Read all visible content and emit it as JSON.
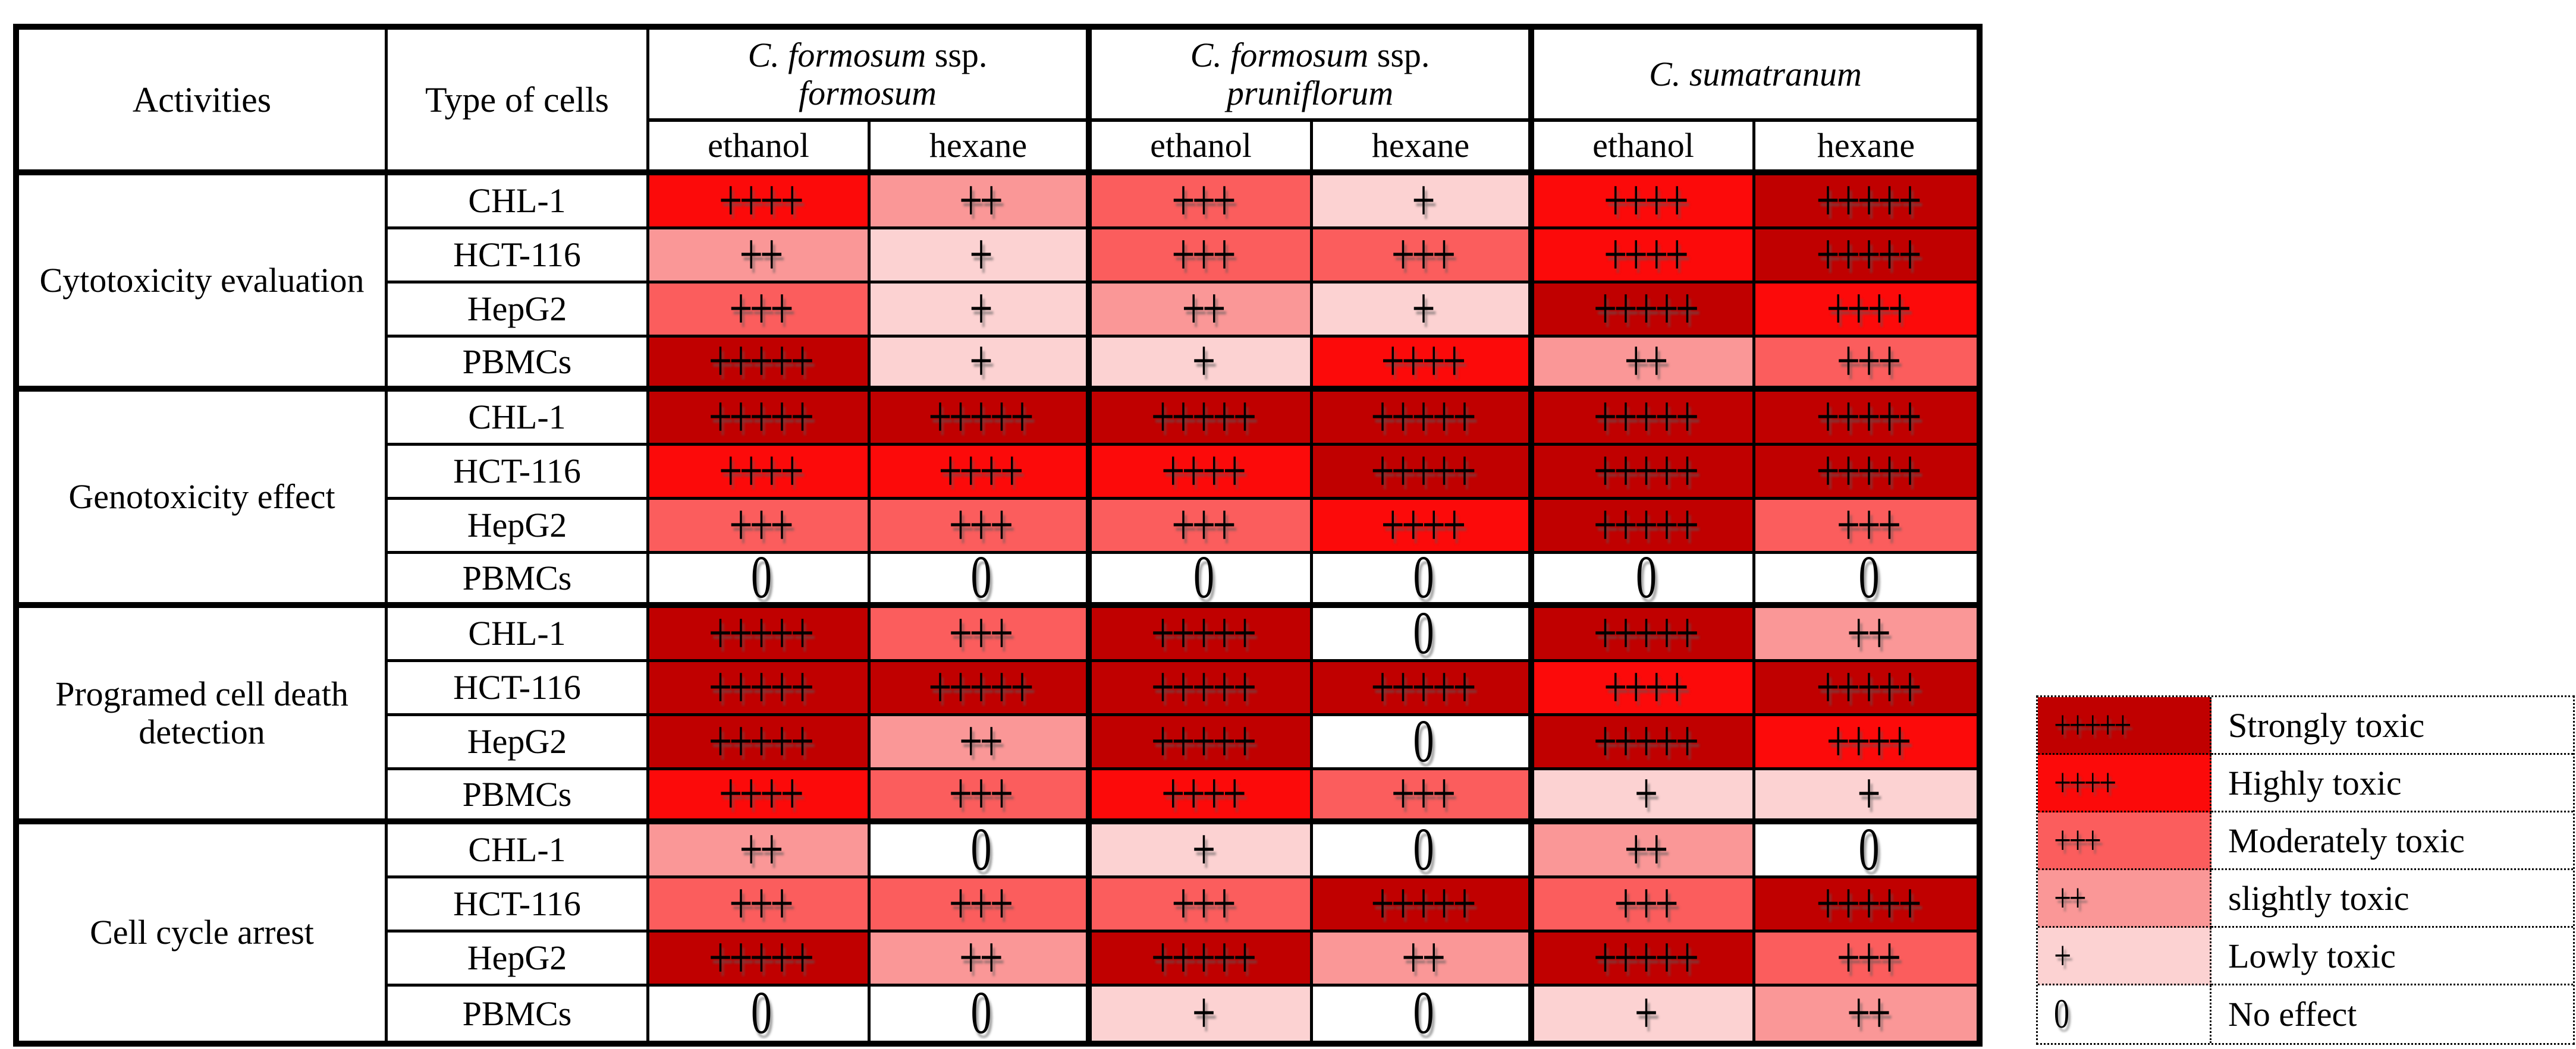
{
  "header": {
    "activities": "Activities",
    "type_of_cells": "Type of cells",
    "species": [
      {
        "italic1": "C. formosum",
        "roman": " ssp.",
        "italic2": "formosum"
      },
      {
        "italic1": "C. formosum",
        "roman": " ssp.",
        "italic2": "pruniflorum"
      },
      {
        "italic1": "C. sumatranum",
        "roman": "",
        "italic2": ""
      }
    ],
    "solvents": [
      "ethanol",
      "hexane",
      "ethanol",
      "hexane",
      "ethanol",
      "hexane"
    ]
  },
  "scale": {
    "5": {
      "symbol": "+++++",
      "color": "#c00000",
      "label": "Strongly toxic"
    },
    "4": {
      "symbol": "++++",
      "color": "#fc0a0a",
      "label": "Highly toxic"
    },
    "3": {
      "symbol": "+++",
      "color": "#fb5d5d",
      "label": "Moderately toxic"
    },
    "2": {
      "symbol": "++",
      "color": "#fa9797",
      "label": "slightly toxic"
    },
    "1": {
      "symbol": "+",
      "color": "#fcd2d2",
      "label": "Lowly toxic"
    },
    "0": {
      "symbol": "0",
      "color": "#ffffff",
      "label": "No effect"
    }
  },
  "matrix": {
    "cell_types": [
      "CHL-1",
      "HCT-116",
      "HepG2",
      "PBMCs"
    ],
    "column_keys": [
      "formosum-ethanol",
      "formosum-hexane",
      "pruniflorum-ethanol",
      "pruniflorum-hexane",
      "sumatranum-ethanol",
      "sumatranum-hexane"
    ],
    "groups": [
      {
        "activity": "Cytotoxicity evaluation",
        "rows": [
          [
            4,
            2,
            3,
            1,
            4,
            5
          ],
          [
            2,
            1,
            3,
            3,
            4,
            5
          ],
          [
            3,
            1,
            2,
            1,
            5,
            4
          ],
          [
            5,
            1,
            1,
            4,
            2,
            3
          ]
        ]
      },
      {
        "activity": "Genotoxicity effect",
        "rows": [
          [
            5,
            5,
            5,
            5,
            5,
            5
          ],
          [
            4,
            4,
            4,
            5,
            5,
            5
          ],
          [
            3,
            3,
            3,
            4,
            5,
            3
          ],
          [
            0,
            0,
            0,
            0,
            0,
            0
          ]
        ]
      },
      {
        "activity": "Programed cell death detection",
        "rows": [
          [
            5,
            3,
            5,
            0,
            5,
            2
          ],
          [
            5,
            5,
            5,
            5,
            4,
            5
          ],
          [
            5,
            2,
            5,
            0,
            5,
            4
          ],
          [
            4,
            3,
            4,
            3,
            1,
            1
          ]
        ]
      },
      {
        "activity": "Cell cycle arrest",
        "rows": [
          [
            2,
            0,
            1,
            0,
            2,
            0
          ],
          [
            3,
            3,
            3,
            5,
            3,
            5
          ],
          [
            5,
            2,
            5,
            2,
            5,
            3
          ],
          [
            0,
            0,
            1,
            0,
            1,
            2
          ]
        ]
      }
    ]
  },
  "legend": {
    "order": [
      "5",
      "4",
      "3",
      "2",
      "1",
      "0"
    ]
  }
}
